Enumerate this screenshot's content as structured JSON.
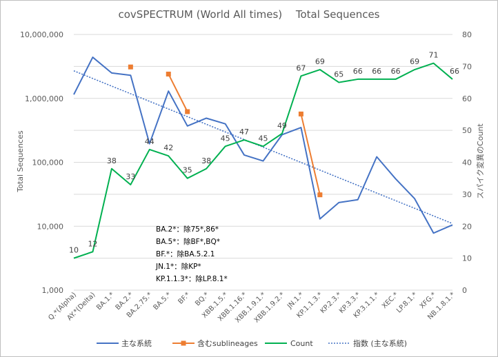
{
  "chart_data": {
    "type": "line",
    "title": "covSPECTRUM (World All times)　 Total Sequences",
    "ylabel_left": "Total Sequences",
    "ylabel_right": "スパイク変異のCount",
    "yscale_left": "log",
    "ylim_left": [
      1000,
      10000000
    ],
    "yticks_left": [
      {
        "value": 1000,
        "label": "1,000"
      },
      {
        "value": 10000,
        "label": "10,000"
      },
      {
        "value": 100000,
        "label": "100,000"
      },
      {
        "value": 1000000,
        "label": "1,000,000"
      },
      {
        "value": 10000000,
        "label": "10,000,000"
      }
    ],
    "ylim_right": [
      0,
      80
    ],
    "yticks_right": [
      "0",
      "10",
      "20",
      "30",
      "40",
      "50",
      "60",
      "70",
      "80"
    ],
    "categories": [
      "Q.*(Alpha)",
      "AY.*(Delta)",
      "BA.1.*",
      "BA.2.*",
      "BA.2.75.*",
      "BA.5.*",
      "BF.*",
      "BQ.*",
      "XBB.1.5.*",
      "XBB.1.16.*",
      "XBB.1.9.1.*",
      "XBB.1.9.2.*",
      "JN.1.*",
      "KP.1.1.3.*",
      "KP.2.3.*",
      "KP.3.3.*",
      "KP.3.1.1.*",
      "XEC.*",
      "LP.8.1.*",
      "XFG.*",
      "NB.1.8.1.*"
    ],
    "series": [
      {
        "name": "主な系統",
        "axis": "left",
        "color": "#4472c4",
        "values": [
          1150000,
          4400000,
          2500000,
          2300000,
          195000,
          1300000,
          370000,
          490000,
          400000,
          130000,
          105000,
          270000,
          350000,
          13000,
          23500,
          26000,
          122000,
          55000,
          27000,
          7800,
          10500
        ]
      },
      {
        "name": "含むsublineages",
        "axis": "left",
        "color": "#ed7d31",
        "segments": [
          {
            "categories": [
              "BA.2.*"
            ],
            "values": [
              3100000
            ]
          },
          {
            "categories": [
              "BA.5.*",
              "BF.*"
            ],
            "values": [
              2400000,
              620000
            ]
          },
          {
            "categories": [
              "JN.1.*",
              "KP.1.1.3.*"
            ],
            "values": [
              570000,
              31000
            ]
          }
        ]
      },
      {
        "name": "Count",
        "axis": "right",
        "color": "#00b050",
        "values": [
          10,
          12,
          38,
          33,
          44,
          42,
          35,
          38,
          45,
          47,
          45,
          49,
          67,
          69,
          65,
          66,
          66,
          66,
          69,
          71,
          66
        ]
      },
      {
        "name": "指数 (主な系統)",
        "axis": "left",
        "color": "#4472c4",
        "style": "dotted",
        "trend": "exponential",
        "from_value": 2700000,
        "to_value": 11000
      }
    ],
    "notes": [
      "BA.2*：除75*,86*",
      "BA.5*：除BF*,BQ*",
      "BF.*：除BA.5.2.1",
      "JN.1*：除KP*",
      "KP.1.1.3*：除LP.8.1*"
    ],
    "legend_position": "bottom",
    "grid": true
  }
}
